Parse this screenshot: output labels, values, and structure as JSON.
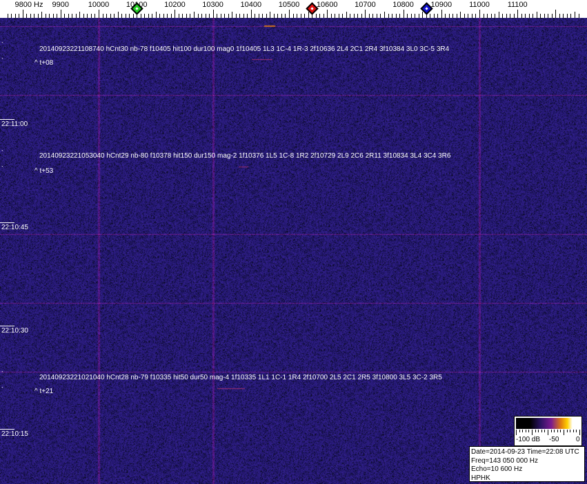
{
  "ruler": {
    "unit_label": "9800 Hz",
    "ticks": [
      "9900",
      "10000",
      "10100",
      "10200",
      "10300",
      "10400",
      "10500",
      "10600",
      "10700",
      "10800",
      "10900",
      "11000",
      "11100"
    ],
    "markers": [
      {
        "name": "green-marker",
        "freq_hz": 10100,
        "color": "#22cc22"
      },
      {
        "name": "red-marker",
        "freq_hz": 10560,
        "color": "#dd1111"
      },
      {
        "name": "blue-marker",
        "freq_hz": 10860,
        "color": "#1111cc"
      }
    ]
  },
  "detections": [
    {
      "text": "20140923221108740 hCnt30 nb-78 f10405 hit100 dur100 mag0 1f10405 1L3 1C-4 1R-3 2f10636 2L4 2C1 2R4 3f10384 3L0 3C-5 3R4",
      "offset": "^ t+08"
    },
    {
      "text": "20140923221053040 hCnt29 nb-80 f10378 hit150 dur150 mag-2 1f10376 1L5 1C-8 1R2 2f10729 2L9 2C6 2R11 3f10834 3L4 3C4 3R6",
      "offset": "^ t+53"
    },
    {
      "text": "20140923221021040 hCnt28 nb-79 f10335 hit50 dur50 mag-4 1f10335 1L1 1C-1 1R4 2f10700 2L5 2C1 2R5 3f10800 3L5 3C-2 3R5",
      "offset": "^ t+21"
    }
  ],
  "time_labels": [
    "22:11:00",
    "22:10:45",
    "22:10:30",
    "22:10:15"
  ],
  "colorscale": {
    "labels": [
      "-100 dB",
      "-50",
      "0"
    ]
  },
  "info": {
    "date_time": "Date=2014-09-23 Time=22:08 UTC",
    "freq": "Freq=143 050 000 Hz",
    "echo": "Echo=10 600 Hz",
    "station": "HPHK"
  },
  "colors": {
    "background": "#1c1a6a",
    "grid_line": "#7a2a8a",
    "text": "#ffffff"
  }
}
